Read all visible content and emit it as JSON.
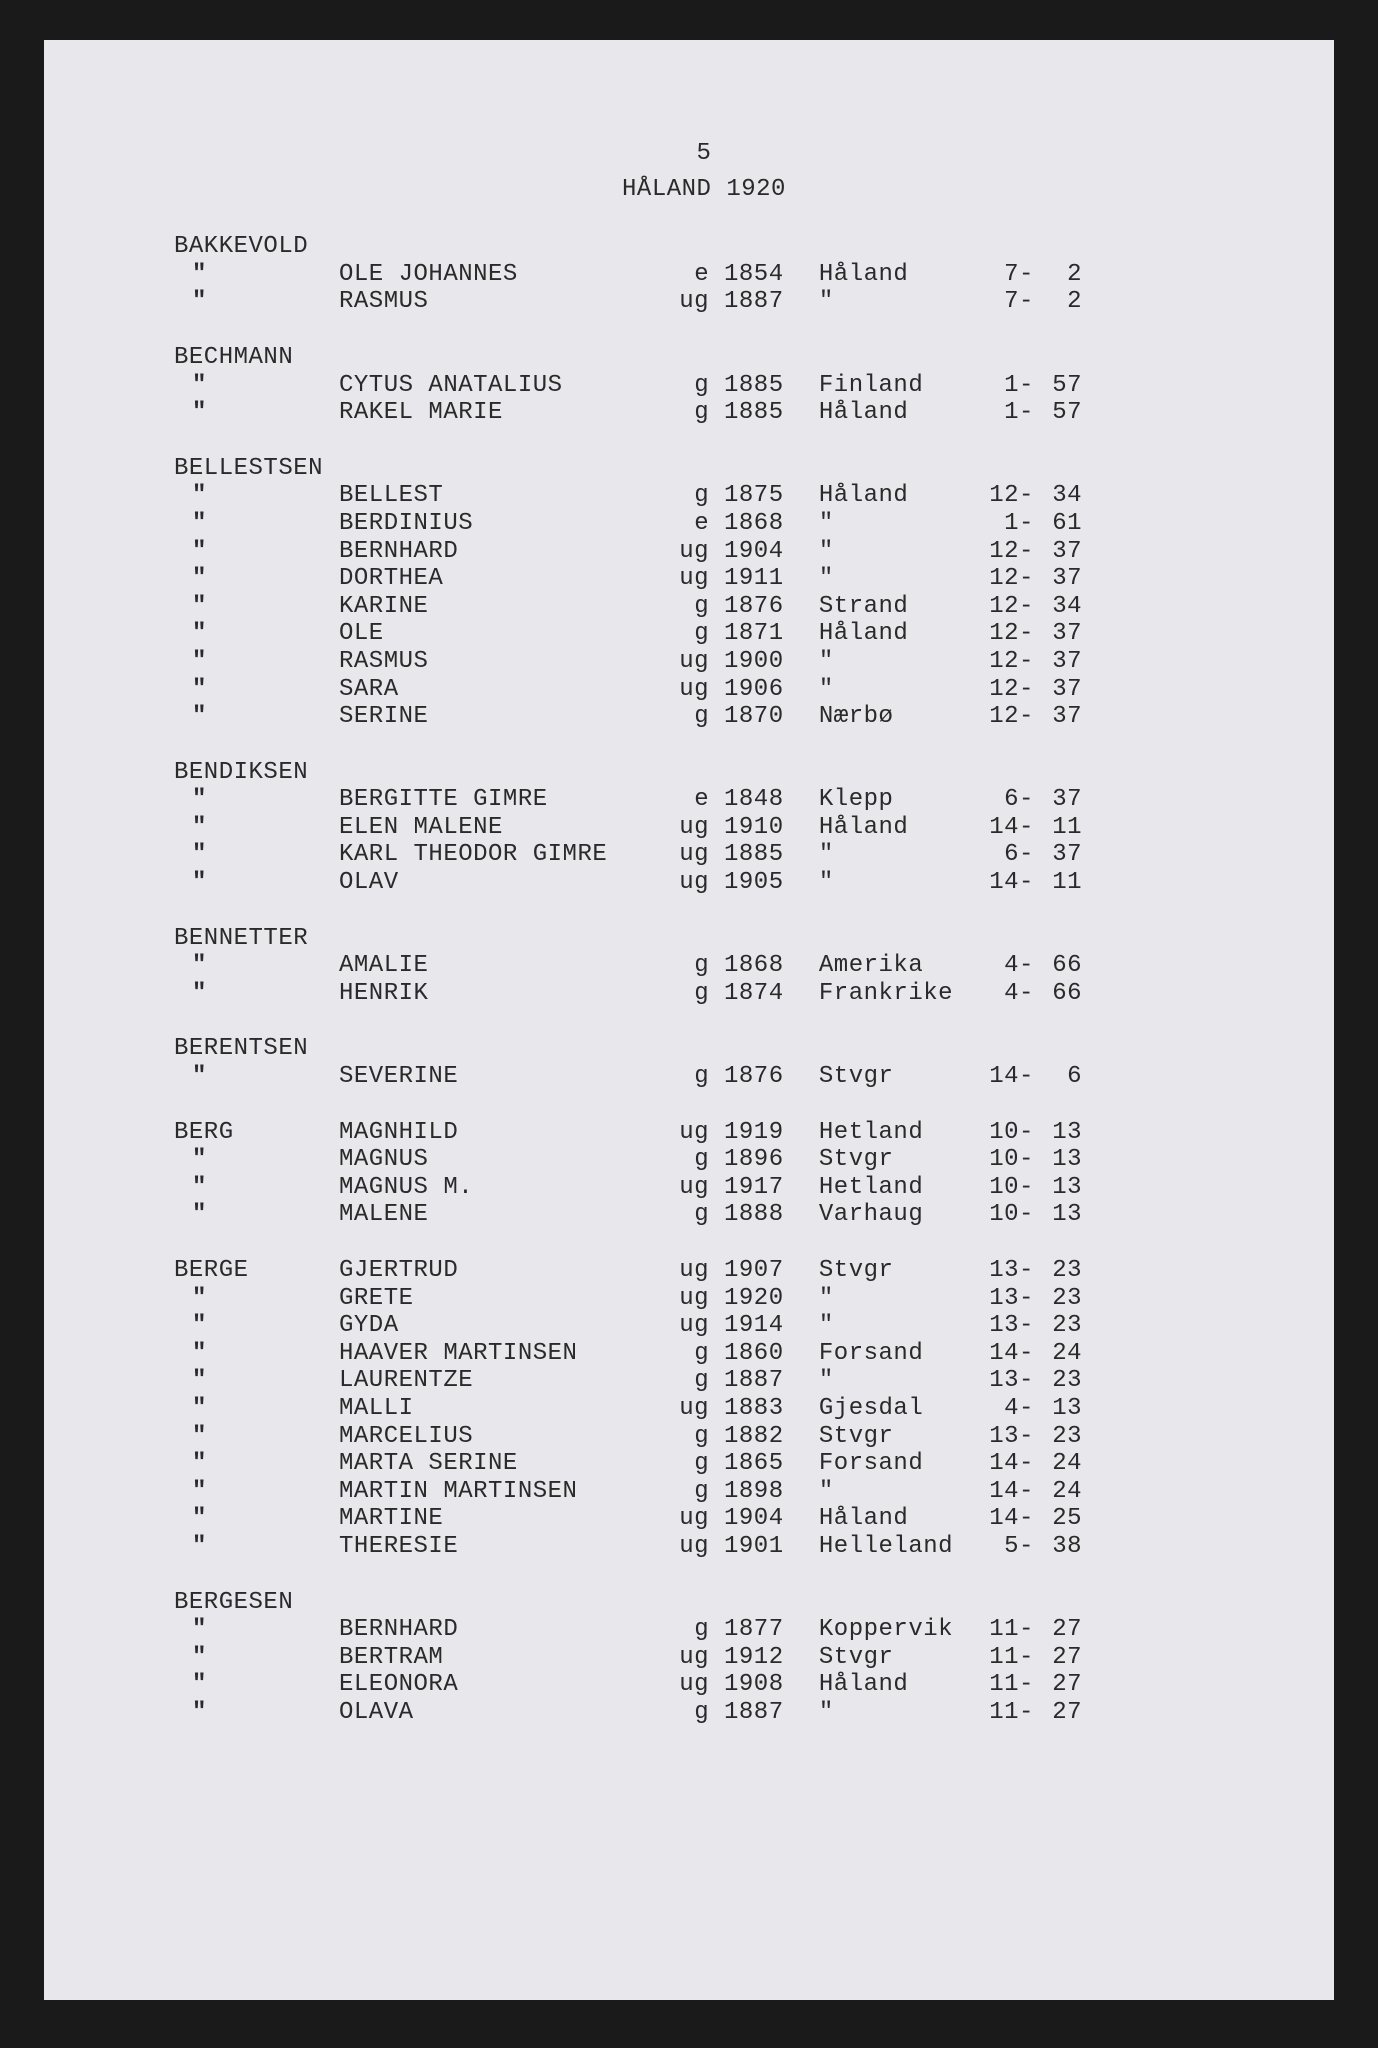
{
  "page_number": "5",
  "title": "HÅLAND 1920",
  "text_color": "#2a2a2a",
  "background_color": "#e8e8ec",
  "font_family": "Courier New",
  "font_size_pt": 18,
  "families": [
    {
      "surname": "BAKKEVOLD",
      "entries": [
        {
          "given": "OLE JOHANNES",
          "status": "e",
          "year": "1854",
          "place": "Håland",
          "r1": "7",
          "r2": "2"
        },
        {
          "given": "RASMUS",
          "status": "ug",
          "year": "1887",
          "place": "\"",
          "r1": "7",
          "r2": "2"
        }
      ]
    },
    {
      "surname": "BECHMANN",
      "entries": [
        {
          "given": "CYTUS ANATALIUS",
          "status": "g",
          "year": "1885",
          "place": "Finland",
          "r1": "1",
          "r2": "57"
        },
        {
          "given": "RAKEL MARIE",
          "status": "g",
          "year": "1885",
          "place": "Håland",
          "r1": "1",
          "r2": "57"
        }
      ]
    },
    {
      "surname": "BELLESTSEN",
      "entries": [
        {
          "given": "BELLEST",
          "status": "g",
          "year": "1875",
          "place": "Håland",
          "r1": "12",
          "r2": "34"
        },
        {
          "given": "BERDINIUS",
          "status": "e",
          "year": "1868",
          "place": "\"",
          "r1": "1",
          "r2": "61"
        },
        {
          "given": "BERNHARD",
          "status": "ug",
          "year": "1904",
          "place": "\"",
          "r1": "12",
          "r2": "37"
        },
        {
          "given": "DORTHEA",
          "status": "ug",
          "year": "1911",
          "place": "\"",
          "r1": "12",
          "r2": "37"
        },
        {
          "given": "KARINE",
          "status": "g",
          "year": "1876",
          "place": "Strand",
          "r1": "12",
          "r2": "34"
        },
        {
          "given": "OLE",
          "status": "g",
          "year": "1871",
          "place": "Håland",
          "r1": "12",
          "r2": "37"
        },
        {
          "given": "RASMUS",
          "status": "ug",
          "year": "1900",
          "place": "\"",
          "r1": "12",
          "r2": "37"
        },
        {
          "given": "SARA",
          "status": "ug",
          "year": "1906",
          "place": "\"",
          "r1": "12",
          "r2": "37"
        },
        {
          "given": "SERINE",
          "status": "g",
          "year": "1870",
          "place": "Nærbø",
          "r1": "12",
          "r2": "37"
        }
      ]
    },
    {
      "surname": "BENDIKSEN",
      "entries": [
        {
          "given": "BERGITTE GIMRE",
          "status": "e",
          "year": "1848",
          "place": "Klepp",
          "r1": "6",
          "r2": "37"
        },
        {
          "given": "ELEN MALENE",
          "status": "ug",
          "year": "1910",
          "place": "Håland",
          "r1": "14",
          "r2": "11"
        },
        {
          "given": "KARL THEODOR GIMRE",
          "status": "ug",
          "year": "1885",
          "place": "\"",
          "r1": "6",
          "r2": "37"
        },
        {
          "given": "OLAV",
          "status": "ug",
          "year": "1905",
          "place": "\"",
          "r1": "14",
          "r2": "11"
        }
      ]
    },
    {
      "surname": "BENNETTER",
      "entries": [
        {
          "given": "AMALIE",
          "status": "g",
          "year": "1868",
          "place": "Amerika",
          "r1": "4",
          "r2": "66"
        },
        {
          "given": "HENRIK",
          "status": "g",
          "year": "1874",
          "place": "Frankrike",
          "r1": "4",
          "r2": "66"
        }
      ]
    },
    {
      "surname": "BERENTSEN",
      "entries": [
        {
          "given": "SEVERINE",
          "status": "g",
          "year": "1876",
          "place": "Stvgr",
          "r1": "14",
          "r2": "6"
        }
      ]
    },
    {
      "surname": "BERG",
      "inline": true,
      "entries": [
        {
          "given": "MAGNHILD",
          "status": "ug",
          "year": "1919",
          "place": "Hetland",
          "r1": "10",
          "r2": "13"
        },
        {
          "given": "MAGNUS",
          "status": "g",
          "year": "1896",
          "place": "Stvgr",
          "r1": "10",
          "r2": "13"
        },
        {
          "given": "MAGNUS M.",
          "status": "ug",
          "year": "1917",
          "place": "Hetland",
          "r1": "10",
          "r2": "13"
        },
        {
          "given": "MALENE",
          "status": "g",
          "year": "1888",
          "place": "Varhaug",
          "r1": "10",
          "r2": "13"
        }
      ]
    },
    {
      "surname": "BERGE",
      "inline": true,
      "entries": [
        {
          "given": "GJERTRUD",
          "status": "ug",
          "year": "1907",
          "place": "Stvgr",
          "r1": "13",
          "r2": "23"
        },
        {
          "given": "GRETE",
          "status": "ug",
          "year": "1920",
          "place": "\"",
          "r1": "13",
          "r2": "23"
        },
        {
          "given": "GYDA",
          "status": "ug",
          "year": "1914",
          "place": "\"",
          "r1": "13",
          "r2": "23"
        },
        {
          "given": "HAAVER MARTINSEN",
          "status": "g",
          "year": "1860",
          "place": "Forsand",
          "r1": "14",
          "r2": "24"
        },
        {
          "given": "LAURENTZE",
          "status": "g",
          "year": "1887",
          "place": "\"",
          "r1": "13",
          "r2": "23"
        },
        {
          "given": "MALLI",
          "status": "ug",
          "year": "1883",
          "place": "Gjesdal",
          "r1": "4",
          "r2": "13"
        },
        {
          "given": "MARCELIUS",
          "status": "g",
          "year": "1882",
          "place": "Stvgr",
          "r1": "13",
          "r2": "23"
        },
        {
          "given": "MARTA SERINE",
          "status": "g",
          "year": "1865",
          "place": "Forsand",
          "r1": "14",
          "r2": "24"
        },
        {
          "given": "MARTIN MARTINSEN",
          "status": "g",
          "year": "1898",
          "place": "\"",
          "r1": "14",
          "r2": "24"
        },
        {
          "given": "MARTINE",
          "status": "ug",
          "year": "1904",
          "place": "Håland",
          "r1": "14",
          "r2": "25"
        },
        {
          "given": "THERESIE",
          "status": "ug",
          "year": "1901",
          "place": "Helleland",
          "r1": "5",
          "r2": "38"
        }
      ]
    },
    {
      "surname": "BERGESEN",
      "entries": [
        {
          "given": "BERNHARD",
          "status": "g",
          "year": "1877",
          "place": "Koppervik",
          "r1": "11",
          "r2": "27"
        },
        {
          "given": "BERTRAM",
          "status": "ug",
          "year": "1912",
          "place": "Stvgr",
          "r1": "11",
          "r2": "27"
        },
        {
          "given": "ELEONORA",
          "status": "ug",
          "year": "1908",
          "place": "Håland",
          "r1": "11",
          "r2": "27"
        },
        {
          "given": "OLAVA",
          "status": "g",
          "year": "1887",
          "place": "\"",
          "r1": "11",
          "r2": "27"
        }
      ]
    }
  ]
}
